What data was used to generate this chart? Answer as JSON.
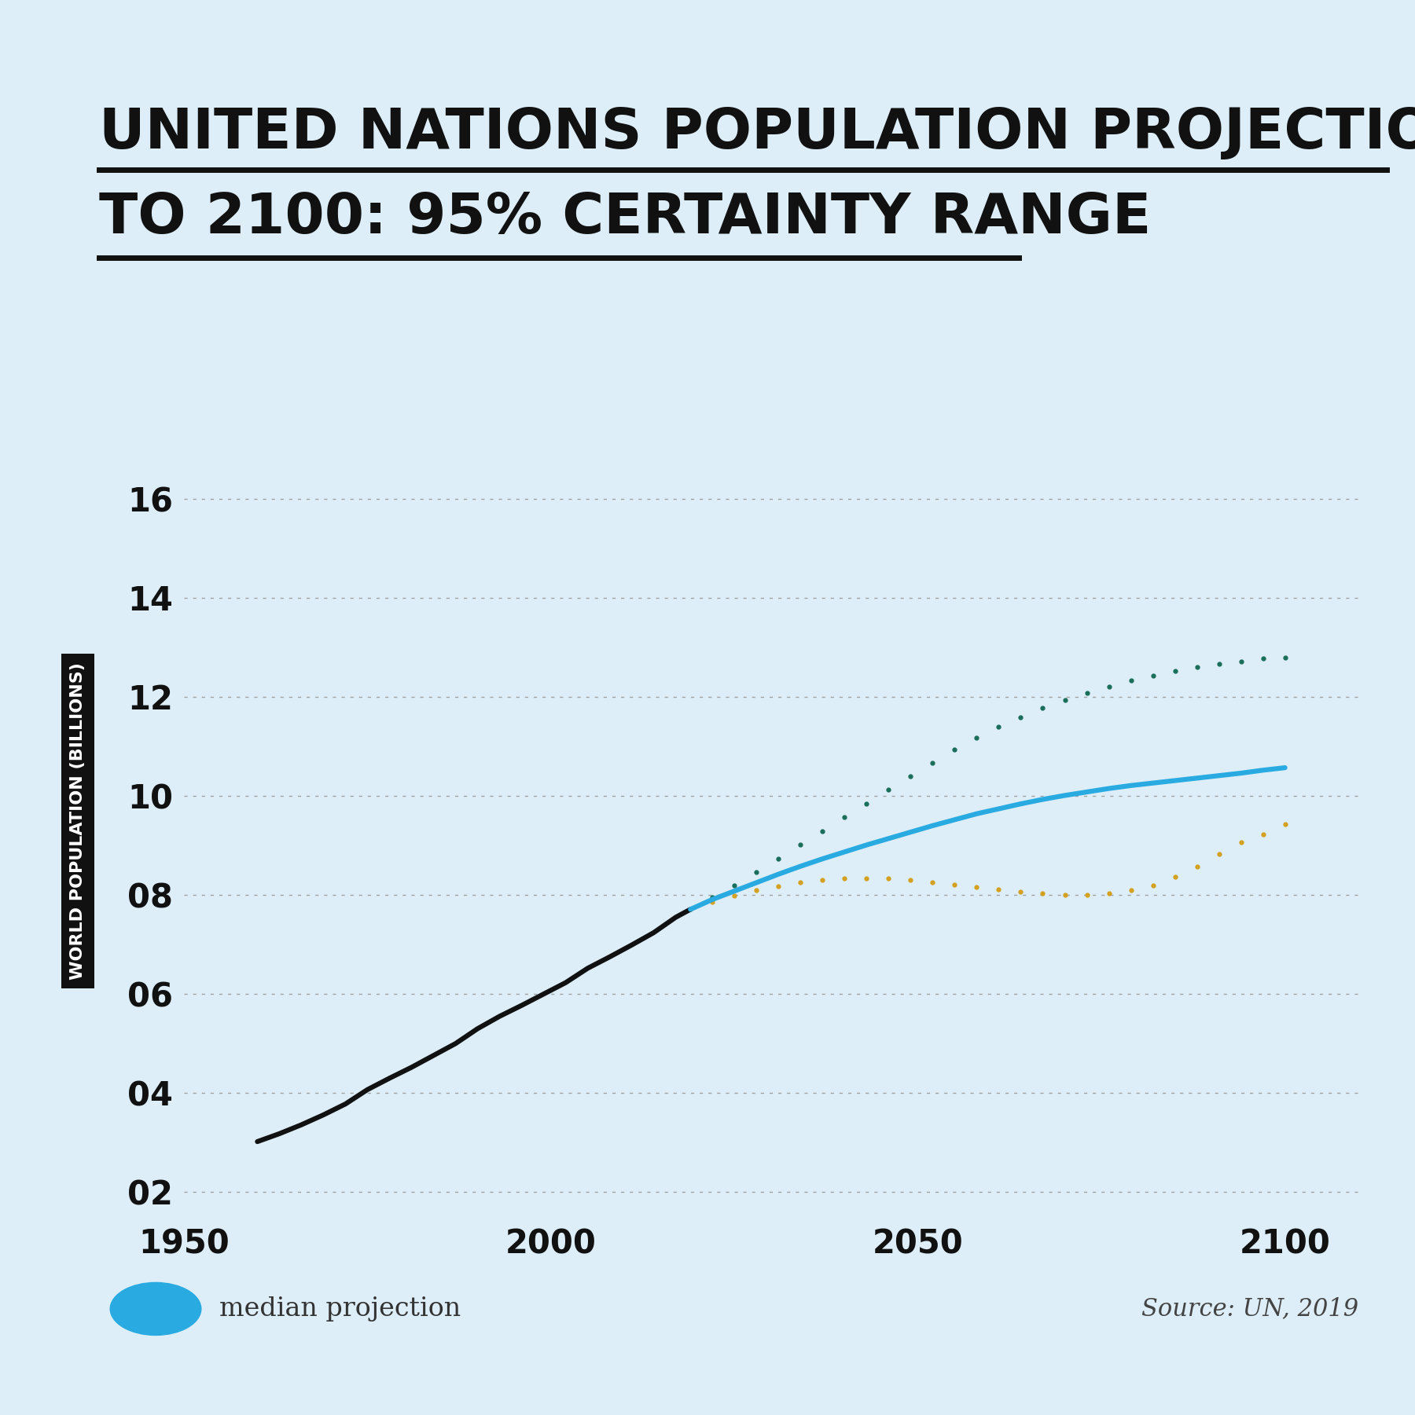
{
  "title_line1": "UNITED NATIONS POPULATION PROJECTIONS",
  "title_line2": "TO 2100: 95% CERTAINTY RANGE",
  "background_color": "#ddeef8",
  "ylabel": "WORLD POPULATION (BILLIONS)",
  "source_text": "Source: UN, 2019",
  "legend_text": "median projection",
  "xlim": [
    1950,
    2110
  ],
  "ylim": [
    1.5,
    17.5
  ],
  "yticks": [
    2,
    4,
    6,
    8,
    10,
    12,
    14,
    16
  ],
  "xticks": [
    1950,
    2000,
    2050,
    2100
  ],
  "historical_years": [
    1960,
    1963,
    1966,
    1969,
    1972,
    1975,
    1978,
    1981,
    1984,
    1987,
    1990,
    1993,
    1996,
    1999,
    2002,
    2005,
    2008,
    2011,
    2014,
    2017,
    2019
  ],
  "historical_values": [
    3.02,
    3.18,
    3.36,
    3.56,
    3.78,
    4.07,
    4.3,
    4.52,
    4.76,
    5.0,
    5.3,
    5.55,
    5.77,
    6.0,
    6.23,
    6.52,
    6.75,
    6.99,
    7.24,
    7.55,
    7.71
  ],
  "median_years": [
    2019,
    2022,
    2025,
    2028,
    2031,
    2034,
    2037,
    2040,
    2043,
    2046,
    2049,
    2052,
    2055,
    2058,
    2061,
    2064,
    2067,
    2070,
    2073,
    2076,
    2079,
    2082,
    2085,
    2088,
    2091,
    2094,
    2097,
    2100
  ],
  "median_values": [
    7.71,
    7.91,
    8.08,
    8.25,
    8.42,
    8.58,
    8.73,
    8.87,
    9.01,
    9.14,
    9.27,
    9.4,
    9.52,
    9.64,
    9.74,
    9.84,
    9.93,
    10.01,
    10.08,
    10.15,
    10.21,
    10.26,
    10.31,
    10.36,
    10.41,
    10.46,
    10.52,
    10.57
  ],
  "upper_years": [
    2019,
    2022,
    2025,
    2028,
    2031,
    2034,
    2037,
    2040,
    2043,
    2046,
    2049,
    2052,
    2055,
    2058,
    2061,
    2064,
    2067,
    2070,
    2073,
    2076,
    2079,
    2082,
    2085,
    2088,
    2091,
    2094,
    2097,
    2100
  ],
  "upper_values": [
    7.71,
    7.96,
    8.2,
    8.46,
    8.73,
    9.01,
    9.29,
    9.57,
    9.85,
    10.12,
    10.4,
    10.67,
    10.93,
    11.17,
    11.39,
    11.59,
    11.77,
    11.94,
    12.08,
    12.21,
    12.33,
    12.43,
    12.52,
    12.6,
    12.67,
    12.72,
    12.77,
    12.8
  ],
  "lower_years": [
    2019,
    2022,
    2025,
    2028,
    2031,
    2034,
    2037,
    2040,
    2043,
    2046,
    2049,
    2052,
    2055,
    2058,
    2061,
    2064,
    2067,
    2070,
    2073,
    2076,
    2079,
    2082,
    2085,
    2088,
    2091,
    2094,
    2097,
    2100
  ],
  "lower_values": [
    7.71,
    7.86,
    7.98,
    8.09,
    8.18,
    8.25,
    8.3,
    8.33,
    8.34,
    8.33,
    8.3,
    8.26,
    8.21,
    8.16,
    8.11,
    8.07,
    8.03,
    8.0,
    8.0,
    8.03,
    8.09,
    8.2,
    8.36,
    8.58,
    8.83,
    9.07,
    9.23,
    9.43
  ],
  "median_color": "#29abe2",
  "upper_color": "#1a6e5a",
  "lower_color": "#d4a020",
  "historical_color": "#111111",
  "grid_color": "#999999",
  "title_color": "#111111",
  "ylabel_bg_color": "#111111",
  "ylabel_text_color": "#ffffff"
}
